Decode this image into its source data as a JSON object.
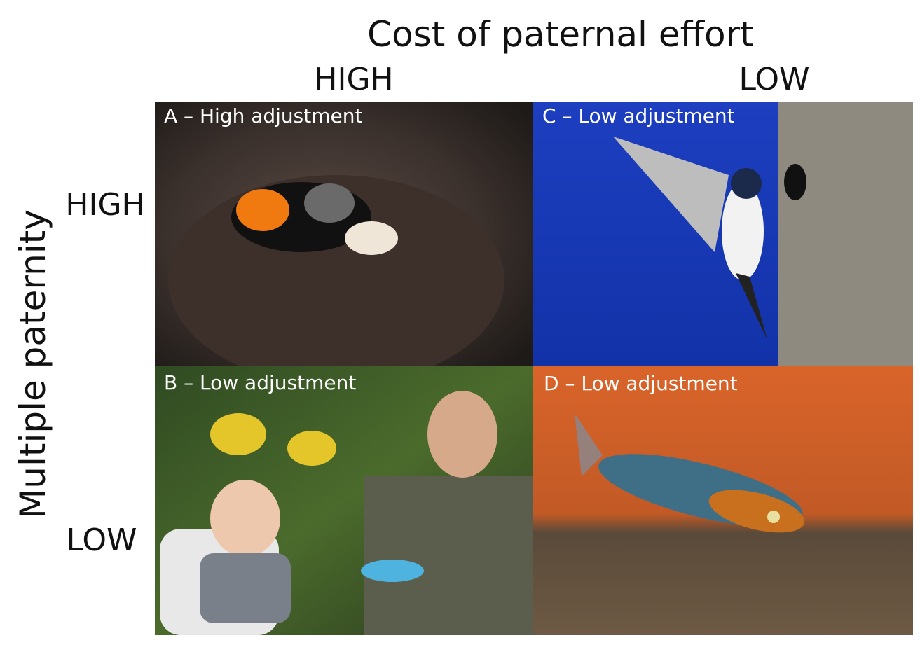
{
  "header": {
    "title": "Cost of paternal effort",
    "columns": [
      "HIGH",
      "LOW"
    ]
  },
  "rows": {
    "title": "Multiple paternity",
    "labels": [
      "HIGH",
      "LOW"
    ]
  },
  "panels": [
    {
      "label": "A – High adjustment"
    },
    {
      "label": "B – Low adjustment"
    },
    {
      "label": "C – Low adjustment"
    },
    {
      "label": "D – Low adjustment"
    }
  ]
}
